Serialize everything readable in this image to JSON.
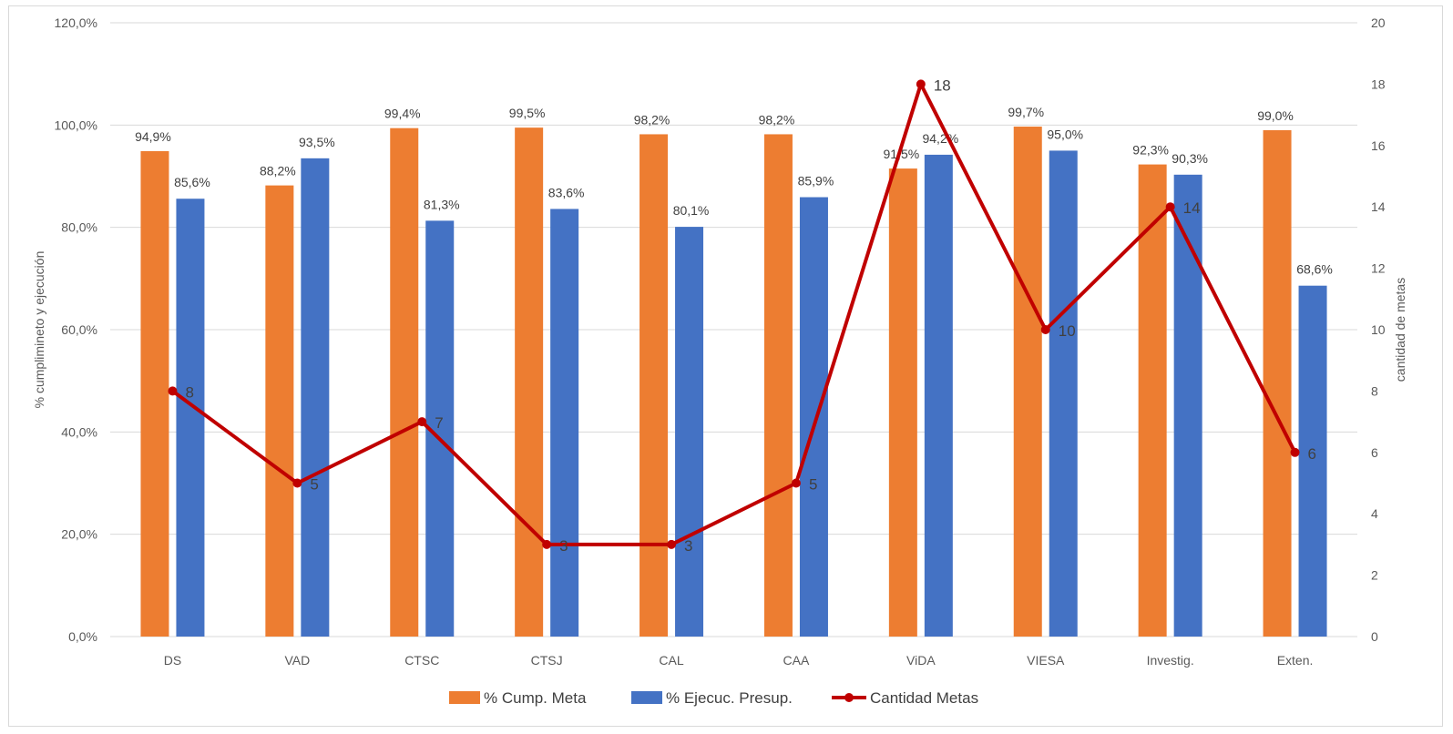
{
  "chart_data": {
    "type": "bar",
    "categories": [
      "DS",
      "VAD",
      "CTSC",
      "CTSJ",
      "CAL",
      "CAA",
      "ViDA",
      "VIESA",
      "Investig.",
      "Exten."
    ],
    "series": [
      {
        "name": "% Cump. Meta",
        "type": "bar",
        "axis": "left",
        "color": "#ED7D31",
        "values": [
          94.9,
          88.2,
          99.4,
          99.5,
          98.2,
          98.2,
          91.5,
          99.7,
          92.3,
          99.0
        ],
        "labels": [
          "94,9%",
          "88,2%",
          "99,4%",
          "99,5%",
          "98,2%",
          "98,2%",
          "91,5%",
          "99,7%",
          "92,3%",
          "99,0%"
        ]
      },
      {
        "name": "% Ejecuc. Presup.",
        "type": "bar",
        "axis": "left",
        "color": "#4472C4",
        "values": [
          85.6,
          93.5,
          81.3,
          83.6,
          80.1,
          85.9,
          94.2,
          95.0,
          90.3,
          68.6
        ],
        "labels": [
          "85,6%",
          "93,5%",
          "81,3%",
          "83,6%",
          "80,1%",
          "85,9%",
          "94,2%",
          "95,0%",
          "90,3%",
          "68,6%"
        ]
      },
      {
        "name": "Cantidad Metas",
        "type": "line",
        "axis": "right",
        "color": "#C00000",
        "values": [
          8,
          5,
          7,
          3,
          3,
          5,
          18,
          10,
          14,
          6
        ],
        "labels": [
          "8",
          "5",
          "7",
          "3",
          "3",
          "5",
          "18",
          "10",
          "14",
          "6"
        ]
      }
    ],
    "y_left": {
      "label": "% cumplimineto y ejecución",
      "lim": [
        0,
        120
      ],
      "ticks": [
        0,
        20,
        40,
        60,
        80,
        100,
        120
      ],
      "tick_labels": [
        "0,0%",
        "20,0%",
        "40,0%",
        "60,0%",
        "80,0%",
        "100,0%",
        "120,0%"
      ]
    },
    "y_right": {
      "label": "cantidad de metas",
      "lim": [
        0,
        20
      ],
      "ticks": [
        0,
        2,
        4,
        6,
        8,
        10,
        12,
        14,
        16,
        18,
        20
      ],
      "tick_labels": [
        "0",
        "2",
        "4",
        "6",
        "8",
        "10",
        "12",
        "14",
        "16",
        "18",
        "20"
      ]
    },
    "grid": true,
    "legend": "bottom"
  }
}
